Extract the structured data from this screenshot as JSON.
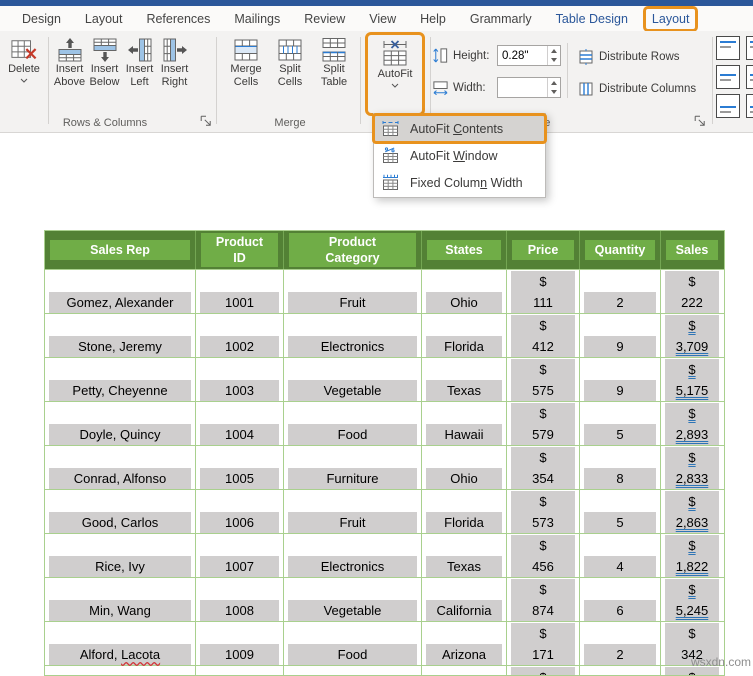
{
  "menu": {
    "tabs": [
      {
        "name": "tab-design",
        "label": "Design",
        "style": "normal"
      },
      {
        "name": "tab-layout",
        "label": "Layout",
        "style": "normal"
      },
      {
        "name": "tab-references",
        "label": "References",
        "style": "normal"
      },
      {
        "name": "tab-mailings",
        "label": "Mailings",
        "style": "normal"
      },
      {
        "name": "tab-review",
        "label": "Review",
        "style": "normal"
      },
      {
        "name": "tab-view",
        "label": "View",
        "style": "normal"
      },
      {
        "name": "tab-help",
        "label": "Help",
        "style": "normal"
      },
      {
        "name": "tab-grammarly",
        "label": "Grammarly",
        "style": "normal"
      },
      {
        "name": "tab-table-design",
        "label": "Table Design",
        "style": "contextual"
      },
      {
        "name": "tab-table-layout",
        "label": "Layout",
        "style": "contextual",
        "annotated": true
      }
    ]
  },
  "ribbon": {
    "delete_label": "Delete",
    "rows_columns": {
      "group_label": "Rows & Columns",
      "buttons": [
        {
          "name": "insert-above-button",
          "icon": "insert-above-icon",
          "line1": "Insert",
          "line2": "Above"
        },
        {
          "name": "insert-below-button",
          "icon": "insert-below-icon",
          "line1": "Insert",
          "line2": "Below"
        },
        {
          "name": "insert-left-button",
          "icon": "insert-left-icon",
          "line1": "Insert",
          "line2": "Left"
        },
        {
          "name": "insert-right-button",
          "icon": "insert-right-icon",
          "line1": "Insert",
          "line2": "Right"
        }
      ]
    },
    "merge": {
      "group_label": "Merge",
      "buttons": [
        {
          "name": "merge-cells-button",
          "icon": "merge-cells-icon",
          "line1": "Merge",
          "line2": "Cells"
        },
        {
          "name": "split-cells-button",
          "icon": "split-cells-icon",
          "line1": "Split",
          "line2": "Cells"
        },
        {
          "name": "split-table-button",
          "icon": "split-table-icon",
          "line1": "Split",
          "line2": "Table"
        }
      ]
    },
    "autofit_label": "AutoFit",
    "cell_size": {
      "group_label": "Cell Size",
      "height_label": "Height:",
      "height_value": "0.28\"",
      "width_label": "Width:",
      "width_value": "",
      "distribute_rows_label": "Distribute Rows",
      "distribute_columns_label": "Distribute Columns"
    }
  },
  "autofit_menu": {
    "items": [
      {
        "name": "menu-item-autofit-contents",
        "icon": "autofit-contents-icon",
        "pre": "AutoFit ",
        "key": "C",
        "post": "ontents",
        "selected": true,
        "annotated": true
      },
      {
        "name": "menu-item-autofit-window",
        "icon": "autofit-window-icon",
        "pre": "AutoFit ",
        "key": "W",
        "post": "indow",
        "selected": false,
        "annotated": false
      },
      {
        "name": "menu-item-fixed-column-width",
        "icon": "fixed-column-width-icon",
        "pre": "Fixed Colum",
        "key": "n",
        "post": " Width",
        "selected": false,
        "annotated": false
      }
    ]
  },
  "document": {
    "table": {
      "currency": "$",
      "headers": [
        {
          "lines": [
            "Sales Rep"
          ]
        },
        {
          "lines": [
            "Product",
            "ID"
          ]
        },
        {
          "lines": [
            "Product",
            "Category"
          ]
        },
        {
          "lines": [
            "States"
          ]
        },
        {
          "lines": [
            "Price"
          ]
        },
        {
          "lines": [
            "Quantity"
          ]
        },
        {
          "lines": [
            "Sales"
          ]
        }
      ],
      "rows": [
        {
          "rep": "Gomez, Alexander",
          "rep_marked": "",
          "id": "1001",
          "category": "Fruit",
          "state": "Ohio",
          "price": "111",
          "qty": "2",
          "sales": "222",
          "sales_underlined": false
        },
        {
          "rep": "Stone, Jeremy",
          "rep_marked": "",
          "id": "1002",
          "category": "Electronics",
          "state": "Florida",
          "price": "412",
          "qty": "9",
          "sales": "3,709",
          "sales_underlined": true
        },
        {
          "rep": "Petty, Cheyenne",
          "rep_marked": "",
          "id": "1003",
          "category": "Vegetable",
          "state": "Texas",
          "price": "575",
          "qty": "9",
          "sales": "5,175",
          "sales_underlined": true
        },
        {
          "rep": "Doyle, Quincy",
          "rep_marked": "",
          "id": "1004",
          "category": "Food",
          "state": "Hawaii",
          "price": "579",
          "qty": "5",
          "sales": "2,893",
          "sales_underlined": true
        },
        {
          "rep": "Conrad, Alfonso",
          "rep_marked": "",
          "id": "1005",
          "category": "Furniture",
          "state": "Ohio",
          "price": "354",
          "qty": "8",
          "sales": "2,833",
          "sales_underlined": true
        },
        {
          "rep": "Good, Carlos",
          "rep_marked": "",
          "id": "1006",
          "category": "Fruit",
          "state": "Florida",
          "price": "573",
          "qty": "5",
          "sales": "2,863",
          "sales_underlined": true
        },
        {
          "rep": "Rice, Ivy",
          "rep_marked": "",
          "id": "1007",
          "category": "Electronics",
          "state": "Texas",
          "price": "456",
          "qty": "4",
          "sales": "1,822",
          "sales_underlined": true
        },
        {
          "rep": "Min, Wang",
          "rep_marked": "",
          "id": "1008",
          "category": "Vegetable",
          "state": "California",
          "price": "874",
          "qty": "6",
          "sales": "5,245",
          "sales_underlined": true
        },
        {
          "rep": "Alford, ",
          "rep_marked": "Lacota",
          "id": "1009",
          "category": "Food",
          "state": "Arizona",
          "price": "171",
          "qty": "2",
          "sales": "342",
          "sales_underlined": false
        }
      ],
      "partial_row": {
        "price_line1": "$",
        "sales_line1": "$"
      }
    }
  },
  "watermark": "wsxdn.com",
  "colors": {
    "accent_orange": "#e8921e",
    "tab_blue": "#2b579a",
    "header_green": "#538135",
    "header_band_green": "#70ad47",
    "grid_green": "#a9d08e",
    "selection_gray": "#d0cece",
    "underline_blue": "#2e75b6"
  }
}
